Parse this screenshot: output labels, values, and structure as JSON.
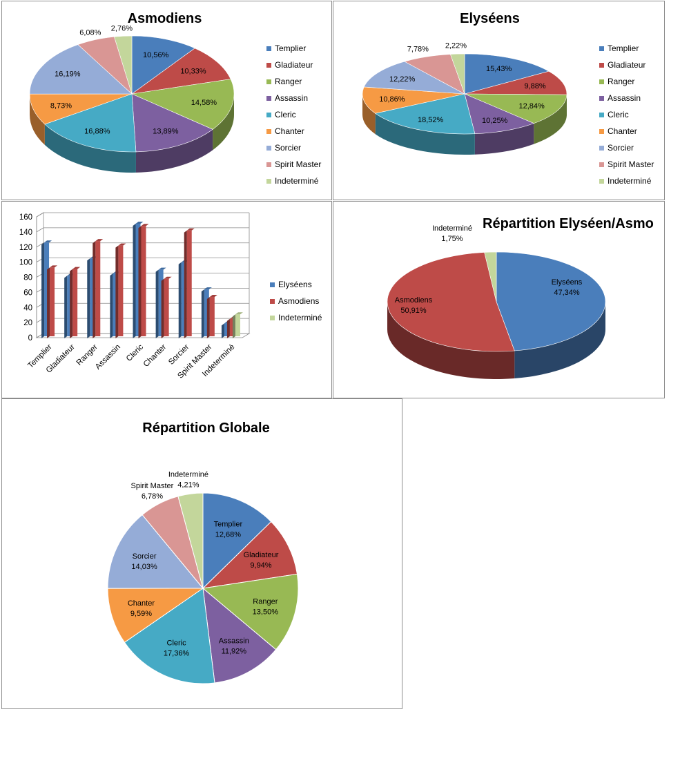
{
  "colors": {
    "Templier": "#4a7ebb",
    "Gladiateur": "#be4b48",
    "Ranger": "#98b954",
    "Assassin": "#7d60a0",
    "Cleric": "#46aac5",
    "Chanter": "#f69a44",
    "Sorcier": "#95acd7",
    "Spirit Master": "#d99694",
    "Indeterminé": "#c3d69b",
    "Elyséens": "#4a7ebb",
    "Asmodiens": "#be4b48"
  },
  "chart_data": [
    {
      "id": "asmo",
      "type": "pie",
      "style": "3d",
      "title": "Asmodiens",
      "categories": [
        "Templier",
        "Gladiateur",
        "Ranger",
        "Assassin",
        "Cleric",
        "Chanter",
        "Sorcier",
        "Spirit Master",
        "Indeterminé"
      ],
      "values": [
        10.56,
        10.33,
        14.58,
        13.89,
        16.88,
        8.73,
        16.19,
        6.08,
        2.76
      ],
      "labels": [
        "10,56%",
        "10,33%",
        "14,58%",
        "13,89%",
        "16,88%",
        "8,73%",
        "16,19%",
        "6,08%",
        "2,76%"
      ],
      "legend": "right"
    },
    {
      "id": "ely",
      "type": "pie",
      "style": "3d",
      "title": "Elyséens",
      "categories": [
        "Templier",
        "Gladiateur",
        "Ranger",
        "Assassin",
        "Cleric",
        "Chanter",
        "Sorcier",
        "Spirit Master",
        "Indeterminé"
      ],
      "values": [
        15.43,
        9.88,
        12.84,
        10.25,
        18.52,
        10.86,
        12.22,
        7.78,
        2.22
      ],
      "labels": [
        "15,43%",
        "9,88%",
        "12,84%",
        "10,25%",
        "18,52%",
        "10,86%",
        "12,22%",
        "7,78%",
        "2,22%"
      ],
      "legend": "right"
    },
    {
      "id": "bars",
      "type": "bar",
      "style": "3d",
      "title": "",
      "categories": [
        "Templier",
        "Gladiateur",
        "Ranger",
        "Assassin",
        "Cleric",
        "Chanter",
        "Sorcier",
        "Spirit Master",
        "Indeterminé"
      ],
      "series": [
        {
          "name": "Elyséens",
          "values": [
            125,
            81,
            104,
            84,
            150,
            89,
            99,
            63,
            18
          ]
        },
        {
          "name": "Asmodiens",
          "values": [
            92,
            90,
            127,
            121,
            147,
            77,
            141,
            53,
            24
          ]
        },
        {
          "name": "Indeterminé",
          "values": [
            null,
            null,
            null,
            null,
            null,
            null,
            null,
            null,
            30
          ]
        }
      ],
      "ylim": [
        0,
        160
      ],
      "yticks": [
        "0",
        "20",
        "40",
        "60",
        "80",
        "100",
        "120",
        "140",
        "160"
      ],
      "grid": true,
      "legend": "right"
    },
    {
      "id": "rep",
      "type": "pie",
      "style": "3d",
      "title": "Répartition Elyséen/Asmo",
      "categories": [
        "Elyséens",
        "Asmodiens",
        "Indeterminé"
      ],
      "values": [
        47.34,
        50.91,
        1.75
      ],
      "labels": [
        "47,34%",
        "50,91%",
        "1,75%"
      ],
      "legend": "none"
    },
    {
      "id": "glob",
      "type": "pie",
      "style": "2d",
      "title": "Répartition Globale",
      "categories": [
        "Templier",
        "Gladiateur",
        "Ranger",
        "Assassin",
        "Cleric",
        "Chanter",
        "Sorcier",
        "Spirit Master",
        "Indeterminé"
      ],
      "values": [
        12.68,
        9.94,
        13.5,
        11.92,
        17.36,
        9.59,
        14.03,
        6.78,
        4.21
      ],
      "labels": [
        "12,68%",
        "9,94%",
        "13,50%",
        "11,92%",
        "17,36%",
        "9,59%",
        "14,03%",
        "6,78%",
        "4,21%"
      ],
      "legend": "none"
    }
  ]
}
